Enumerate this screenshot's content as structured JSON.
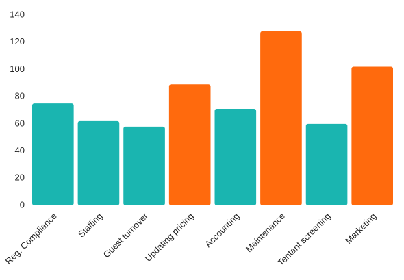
{
  "chart_data": {
    "type": "bar",
    "categories": [
      "Reg. Compliance",
      "Staffing",
      "Guest turnover",
      "Updating pricing",
      "Accounting",
      "Maintenance",
      "Tentant screening",
      "Marketing"
    ],
    "values": [
      75,
      62,
      58,
      89,
      71,
      128,
      60,
      102
    ],
    "colors": [
      "#1ab5b0",
      "#1ab5b0",
      "#1ab5b0",
      "#ff6a0d",
      "#1ab5b0",
      "#ff6a0d",
      "#1ab5b0",
      "#ff6a0d"
    ],
    "ylim": [
      0,
      140
    ],
    "yticks": [
      0,
      20,
      40,
      60,
      80,
      100,
      120,
      140
    ],
    "grid": false
  }
}
